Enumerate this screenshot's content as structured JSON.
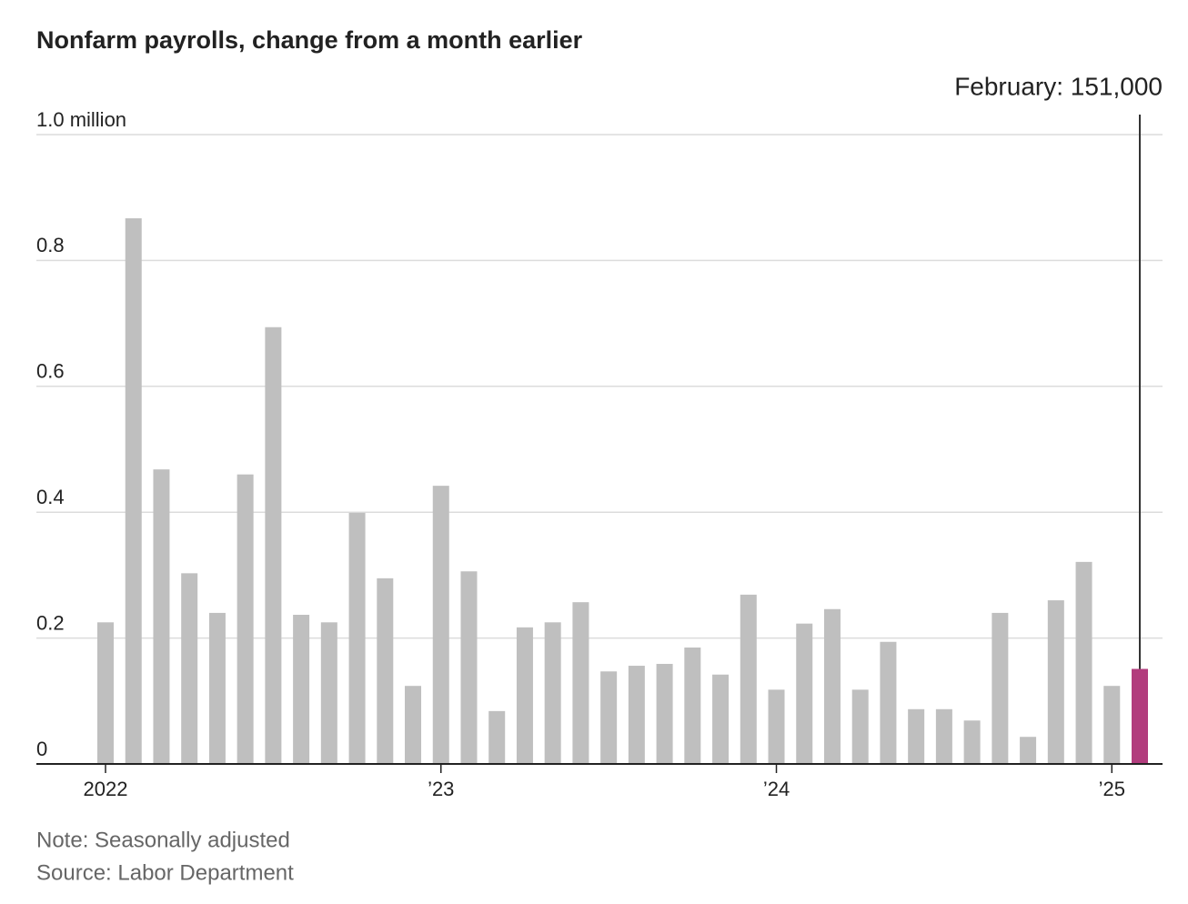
{
  "chart_data": {
    "type": "bar",
    "title": "Nonfarm payrolls, change from a month earlier",
    "annotation": "February: 151,000",
    "note": "Note: Seasonally adjusted",
    "source": "Source: Labor Department",
    "categories": [
      "2022",
      null,
      null,
      null,
      null,
      null,
      null,
      null,
      null,
      null,
      null,
      null,
      "’23",
      null,
      null,
      null,
      null,
      null,
      null,
      null,
      null,
      null,
      null,
      null,
      "’24",
      null,
      null,
      null,
      null,
      null,
      null,
      null,
      null,
      null,
      null,
      null,
      "’25",
      null
    ],
    "values": [
      0.225,
      0.867,
      0.468,
      0.303,
      0.24,
      0.46,
      0.694,
      0.237,
      0.225,
      0.399,
      0.295,
      0.124,
      0.442,
      0.306,
      0.084,
      0.217,
      0.225,
      0.257,
      0.147,
      0.156,
      0.159,
      0.185,
      0.142,
      0.269,
      0.118,
      0.223,
      0.246,
      0.118,
      0.194,
      0.087,
      0.087,
      0.069,
      0.24,
      0.043,
      0.26,
      0.321,
      0.124,
      0.151
    ],
    "colors": [
      "#bfbfbf",
      "#bfbfbf",
      "#bfbfbf",
      "#bfbfbf",
      "#bfbfbf",
      "#bfbfbf",
      "#bfbfbf",
      "#bfbfbf",
      "#bfbfbf",
      "#bfbfbf",
      "#bfbfbf",
      "#bfbfbf",
      "#bfbfbf",
      "#bfbfbf",
      "#bfbfbf",
      "#bfbfbf",
      "#bfbfbf",
      "#bfbfbf",
      "#bfbfbf",
      "#bfbfbf",
      "#bfbfbf",
      "#bfbfbf",
      "#bfbfbf",
      "#bfbfbf",
      "#bfbfbf",
      "#bfbfbf",
      "#bfbfbf",
      "#bfbfbf",
      "#bfbfbf",
      "#bfbfbf",
      "#bfbfbf",
      "#bfbfbf",
      "#bfbfbf",
      "#bfbfbf",
      "#bfbfbf",
      "#bfbfbf",
      "#bfbfbf",
      "#b23c7d"
    ],
    "ylim": [
      0,
      1.0
    ],
    "yticks": [
      0,
      0.2,
      0.4,
      0.6,
      0.8,
      {
        "value": 1.0,
        "label": "1.0 million"
      }
    ],
    "grid": true
  }
}
